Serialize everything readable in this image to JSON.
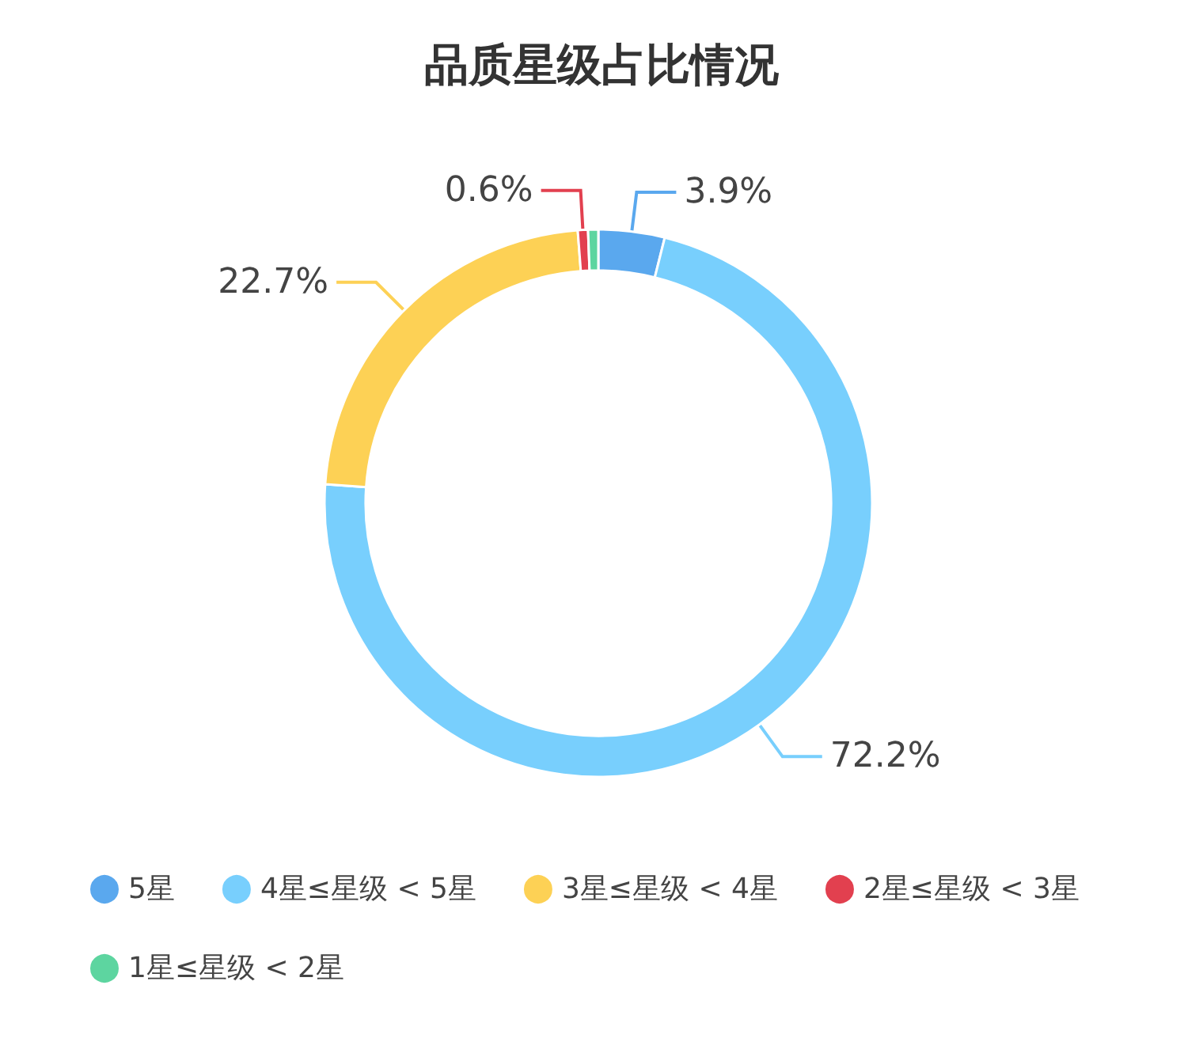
{
  "chart_data": {
    "type": "donut",
    "title": "品质星级占比情况",
    "categories": [
      "5星",
      "4星≤星级 < 5星",
      "3星≤星级 < 4星",
      "2星≤星级 < 3星",
      "1星≤星级 < 2星"
    ],
    "values": [
      3.9,
      72.2,
      22.7,
      0.6,
      0.6
    ],
    "colors": [
      "#5aa8ee",
      "#78cffd",
      "#fdd155",
      "#e2404f",
      "#5dd5a0"
    ],
    "value_labels": [
      "3.9%",
      "72.2%",
      "22.7%",
      "0.6%",
      null
    ],
    "legend": "bottom left"
  }
}
